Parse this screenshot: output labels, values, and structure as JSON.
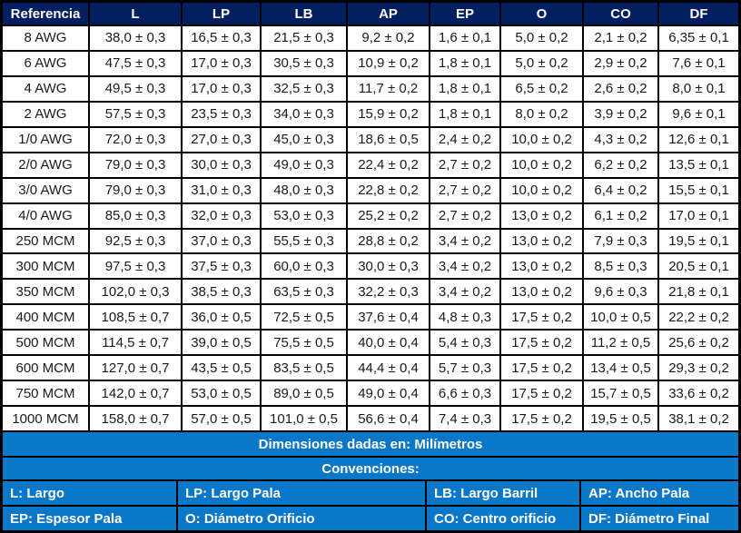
{
  "chart_data": {
    "type": "table",
    "columns": [
      "Referencia",
      "L",
      "LP",
      "LB",
      "AP",
      "EP",
      "O",
      "CO",
      "DF"
    ],
    "rows": [
      [
        "8 AWG",
        "38,0 ± 0,3",
        "16,5 ± 0,3",
        "21,5 ± 0,3",
        "9,2 ± 0,2",
        "1,6 ± 0,1",
        "5,0 ± 0,2",
        "2,1 ± 0,2",
        "6,35 ± 0,1"
      ],
      [
        "6 AWG",
        "47,5 ± 0,3",
        "17,0 ± 0,3",
        "30,5 ± 0,3",
        "10,9 ± 0,2",
        "1,8 ± 0,1",
        "5,0 ± 0,2",
        "2,9 ± 0,2",
        "7,6 ± 0,1"
      ],
      [
        "4 AWG",
        "49,5 ± 0,3",
        "17,0 ± 0,3",
        "32,5 ± 0,3",
        "11,7 ± 0,2",
        "1,8 ± 0,1",
        "6,5 ± 0,2",
        "2,6 ± 0,2",
        "8,0 ± 0,1"
      ],
      [
        "2 AWG",
        "57,5 ± 0,3",
        "23,5 ± 0,3",
        "34,0 ± 0,3",
        "15,9 ± 0,2",
        "1,8 ± 0,1",
        "8,0 ± 0,2",
        "3,9 ± 0,2",
        "9,6 ± 0,1"
      ],
      [
        "1/0 AWG",
        "72,0 ± 0,3",
        "27,0 ± 0,3",
        "45,0 ± 0,3",
        "18,6 ± 0,5",
        "2,4 ± 0,2",
        "10,0 ± 0,2",
        "4,3 ± 0,2",
        "12,6 ± 0,1"
      ],
      [
        "2/0 AWG",
        "79,0 ± 0,3",
        "30,0 ± 0,3",
        "49,0 ± 0,3",
        "22,4 ± 0,2",
        "2,7 ± 0,2",
        "10,0 ± 0,2",
        "6,2 ± 0,2",
        "13,5 ± 0,1"
      ],
      [
        "3/0 AWG",
        "79,0 ± 0,3",
        "31,0 ± 0,3",
        "48,0 ± 0,3",
        "22,8 ± 0,2",
        "2,7 ± 0,2",
        "10,0 ± 0,2",
        "6,4 ± 0,2",
        "15,5 ± 0,1"
      ],
      [
        "4/0 AWG",
        "85,0 ± 0,3",
        "32,0 ± 0,3",
        "53,0 ± 0,3",
        "25,2 ± 0,2",
        "2,7 ± 0,2",
        "13,0 ± 0,2",
        "6,1 ± 0,2",
        "17,0 ± 0,1"
      ],
      [
        "250 MCM",
        "92,5 ± 0,3",
        "37,0 ± 0,3",
        "55,5 ± 0,3",
        "28,8 ± 0,2",
        "3,4 ± 0,2",
        "13,0 ± 0,2",
        "7,9 ± 0,3",
        "19,5 ± 0,1"
      ],
      [
        "300 MCM",
        "97,5 ± 0,3",
        "37,5 ± 0,3",
        "60,0 ± 0,3",
        "30,0 ± 0,3",
        "3,4 ± 0,2",
        "13,0 ± 0,2",
        "8,5 ± 0,3",
        "20,5 ± 0,1"
      ],
      [
        "350 MCM",
        "102,0 ± 0,3",
        "38,5 ± 0,3",
        "63,5 ± 0,3",
        "32,2 ± 0,3",
        "3,4 ± 0,2",
        "13,0 ± 0,2",
        "9,6 ± 0,3",
        "21,8 ± 0,1"
      ],
      [
        "400 MCM",
        "108,5 ± 0,7",
        "36,0 ± 0,5",
        "72,5 ± 0,5",
        "37,6 ± 0,4",
        "4,8 ± 0,3",
        "17,5 ± 0,2",
        "10,0 ± 0,5",
        "22,2 ± 0,2"
      ],
      [
        "500 MCM",
        "114,5 ± 0,7",
        "39,0 ± 0,5",
        "75,5 ± 0,5",
        "40,0 ± 0,4",
        "5,4 ± 0,3",
        "17,5 ± 0,2",
        "11,2 ± 0,5",
        "25,6 ± 0,2"
      ],
      [
        "600 MCM",
        "127,0 ± 0,7",
        "43,5 ± 0,5",
        "83,5 ± 0,5",
        "44,4 ± 0,4",
        "5,7 ± 0,3",
        "17,5 ± 0,2",
        "13,4 ± 0,5",
        "29,3 ± 0,2"
      ],
      [
        "750 MCM",
        "142,0 ± 0,7",
        "53,0 ± 0,5",
        "89,0 ± 0,5",
        "49,0 ± 0,4",
        "6,6 ± 0,3",
        "17,5 ± 0,2",
        "15,7 ± 0,5",
        "33,6 ± 0,2"
      ],
      [
        "1000 MCM",
        "158,0 ± 0,7",
        "57,0 ± 0,5",
        "101,0 ± 0,5",
        "56,6 ± 0,4",
        "7,4 ± 0,3",
        "17,5 ± 0,2",
        "19,5 ± 0,5",
        "38,1 ± 0,2"
      ]
    ],
    "units_note": "Dimensiones dadas en: Milímetros",
    "conventions_title": "Convenciones:",
    "legend": [
      [
        "L: Largo",
        "LP: Largo Pala",
        "LB: Largo Barril",
        "AP: Ancho Pala"
      ],
      [
        "EP: Espesor Pala",
        "O: Diámetro Orificio",
        "CO: Centro orificio",
        "DF: Diámetro Final"
      ]
    ]
  },
  "colors": {
    "header_bg": "#041f60",
    "accent_blue": "#0b77c8",
    "grid_line": "#000000",
    "cell_bg": "#ffffff",
    "cell_text": "#1a1a1a",
    "header_text": "#ffffff"
  }
}
